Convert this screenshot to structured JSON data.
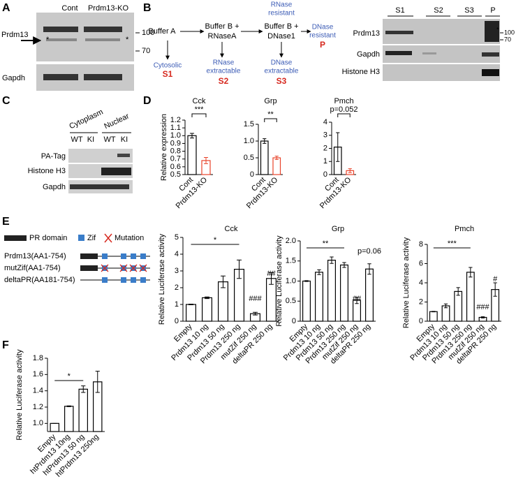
{
  "panel_a": {
    "letter": "A",
    "lanes": [
      "Cont",
      "Prdm13-KO"
    ],
    "rows": [
      "Prdm13",
      "Gapdh"
    ],
    "markers": [
      "100",
      "70"
    ],
    "asterisks": [
      "*",
      "*"
    ]
  },
  "panel_b": {
    "letter": "B",
    "steps": [
      [
        "Buffer A"
      ],
      [
        "Buffer B +",
        "RNaseA"
      ],
      [
        "Buffer B +",
        "DNase1"
      ]
    ],
    "fractions": [
      {
        "label": [
          "Cytosolic"
        ],
        "name": "S1"
      },
      {
        "label": [
          "RNase",
          "extractable"
        ],
        "name": "S2"
      },
      {
        "label": [
          "DNase",
          "extractable"
        ],
        "name": "S3"
      }
    ],
    "resistant": [
      "RNase",
      "resistant"
    ],
    "final": {
      "label": [
        "DNase",
        "resistant"
      ],
      "name": "P"
    },
    "lanes": [
      "S1",
      "S2",
      "S3",
      "P"
    ],
    "rows": [
      "Prdm13",
      "Gapdh",
      "Histone H3"
    ],
    "markers": [
      "100",
      "70"
    ],
    "asterisk": "*"
  },
  "panel_c": {
    "letter": "C",
    "groups": [
      "Cytoplasm",
      "Nuclear"
    ],
    "lanes": [
      "WT",
      "KI",
      "WT",
      "KI"
    ],
    "rows": [
      "PA-Tag",
      "Histone H3",
      "Gapdh"
    ]
  },
  "panel_d": {
    "letter": "D"
  },
  "panel_e": {
    "letter": "E",
    "keys": [
      "PR domain",
      "Zif",
      "Mutation"
    ],
    "constructs": [
      "Prdm13(AA1-754)",
      "mutZif(AA1-754)",
      "deltaPR(AA181-754)"
    ]
  },
  "panel_f": {
    "letter": "F"
  },
  "chart_data": [
    {
      "type": "bar",
      "title": "Cck",
      "ylabel": "Relative expression",
      "categories": [
        "Cont",
        "Prdm13-KO"
      ],
      "values": [
        1.0,
        0.68
      ],
      "errors": [
        0.03,
        0.04
      ],
      "colors": [
        "#000000",
        "#e8432a"
      ],
      "ylim": [
        0.5,
        1.2
      ],
      "yticks": [
        0.5,
        0.6,
        0.7,
        0.8,
        0.9,
        {
          "value": 1,
          "label": "1.0"
        },
        1.1,
        1.2
      ],
      "annotations": [
        "***"
      ]
    },
    {
      "type": "bar",
      "title": "Grp",
      "categories": [
        "Cont",
        "Prdm13-KO"
      ],
      "values": [
        1.0,
        0.5
      ],
      "errors": [
        0.07,
        0.05
      ],
      "colors": [
        "#000000",
        "#e8432a"
      ],
      "ylim": [
        0,
        1.5
      ],
      "yticks": [
        0,
        0.5,
        {
          "value": 1,
          "label": "1.0"
        },
        1.5
      ],
      "annotations": [
        "**"
      ]
    },
    {
      "type": "bar",
      "title": "Pmch",
      "categories": [
        "Cont",
        "Prdm13-KO"
      ],
      "values": [
        2.1,
        0.3
      ],
      "errors": [
        1.1,
        0.15
      ],
      "colors": [
        "#000000",
        "#e8432a"
      ],
      "ylim": [
        0,
        4
      ],
      "yticks": [
        0,
        1,
        2,
        3,
        4
      ],
      "annotations": [
        "p=0.052"
      ]
    },
    {
      "type": "bar",
      "title": "Cck",
      "ylabel": "Relative Luciferase activity",
      "categories": [
        "Empty",
        "Prdm13 10 ng",
        "Prdm13 50 ng",
        "Prdm13 250 ng",
        "mutZif 250 ng",
        "deltaPR 250 ng"
      ],
      "values": [
        1.0,
        1.4,
        2.35,
        3.1,
        0.45,
        2.55
      ],
      "errors": [
        0.02,
        0.05,
        0.35,
        0.55,
        0.08,
        0.35
      ],
      "colors": [
        "#000000",
        "#000000",
        "#000000",
        "#000000",
        "#000000",
        "#000000"
      ],
      "ylim": [
        0,
        5
      ],
      "yticks": [
        0,
        1,
        2,
        3,
        4,
        5
      ],
      "annotations": [
        "*",
        "###",
        "##"
      ]
    },
    {
      "type": "bar",
      "title": "Grp",
      "ylabel": "Relative Luciferase activity",
      "categories": [
        "Empty",
        "Prdm13 10 ng",
        "Prdm13 50 ng",
        "Prdm13 250 ng",
        "mutZif 250 ng",
        "deltaPR 250 ng"
      ],
      "values": [
        1.0,
        1.22,
        1.52,
        1.4,
        0.52,
        1.3
      ],
      "errors": [
        0.01,
        0.06,
        0.08,
        0.06,
        0.08,
        0.13
      ],
      "colors": [
        "#000000",
        "#000000",
        "#000000",
        "#000000",
        "#000000",
        "#000000"
      ],
      "ylim": [
        0,
        2
      ],
      "yticks": [
        0,
        0.5,
        {
          "value": 1,
          "label": "1.0"
        },
        1.5,
        {
          "value": 2,
          "label": "2.0"
        }
      ],
      "annotations": [
        "**",
        "##",
        "p=0.06"
      ]
    },
    {
      "type": "bar",
      "title": "Pmch",
      "ylabel": "Relative Luciferase activity",
      "categories": [
        "Empty",
        "Prdm13 10 ng",
        "Prdm13 50 ng",
        "Prdm13 250 ng",
        "mutZif 250 ng",
        "deltaPR 250 ng"
      ],
      "values": [
        1.0,
        1.6,
        3.1,
        5.1,
        0.4,
        3.3
      ],
      "errors": [
        0.03,
        0.2,
        0.4,
        0.5,
        0.06,
        0.7
      ],
      "colors": [
        "#000000",
        "#000000",
        "#000000",
        "#000000",
        "#000000",
        "#000000"
      ],
      "ylim": [
        0,
        8
      ],
      "yticks": [
        0,
        2,
        4,
        6,
        8
      ],
      "annotations": [
        "***",
        "###",
        "#"
      ]
    },
    {
      "type": "bar",
      "ylabel": "Relative Luciferase activity",
      "categories": [
        "Empty",
        "htPrdm13 10ng",
        "htPrdm13 50 ng",
        "htPrdm13 250ng"
      ],
      "values": [
        1.0,
        1.21,
        1.42,
        1.51
      ],
      "errors": [
        0,
        0.005,
        0.04,
        0.13
      ],
      "colors": [
        "#000000",
        "#000000",
        "#000000",
        "#000000"
      ],
      "ylim": [
        0.9,
        1.8
      ],
      "yticks": [
        {
          "value": 1,
          "label": "1.0"
        },
        1.2,
        1.4,
        1.6,
        1.8
      ],
      "annotations": [
        "*"
      ]
    }
  ]
}
